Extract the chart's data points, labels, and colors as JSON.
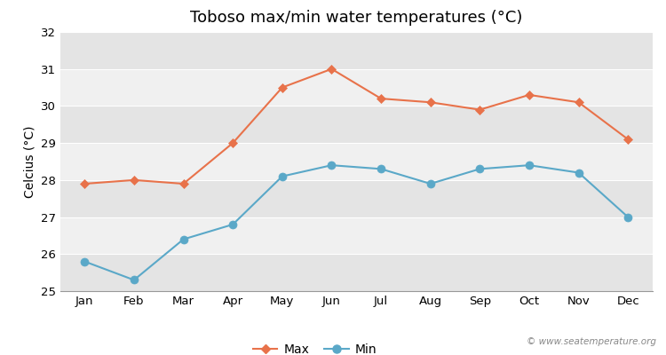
{
  "title": "Toboso max/min water temperatures (°C)",
  "ylabel": "Celcius (°C)",
  "months": [
    "Jan",
    "Feb",
    "Mar",
    "Apr",
    "May",
    "Jun",
    "Jul",
    "Aug",
    "Sep",
    "Oct",
    "Nov",
    "Dec"
  ],
  "max_temps": [
    27.9,
    28.0,
    27.9,
    29.0,
    30.5,
    31.0,
    30.2,
    30.1,
    29.9,
    30.3,
    30.1,
    29.1
  ],
  "min_temps": [
    25.8,
    25.3,
    26.4,
    26.8,
    28.1,
    28.4,
    28.3,
    27.9,
    28.3,
    28.4,
    28.2,
    27.0
  ],
  "max_color": "#e8724a",
  "min_color": "#5aa8c8",
  "bg_color": "#ffffff",
  "plot_bg_color": "#f0f0f0",
  "band_color_light": "#f0f0f0",
  "band_color_dark": "#e4e4e4",
  "ylim": [
    25,
    32
  ],
  "yticks": [
    25,
    26,
    27,
    28,
    29,
    30,
    31,
    32
  ],
  "legend_labels": [
    "Max",
    "Min"
  ],
  "watermark": "© www.seatemperature.org",
  "title_fontsize": 13,
  "axis_label_fontsize": 10,
  "tick_fontsize": 9.5,
  "legend_fontsize": 10
}
